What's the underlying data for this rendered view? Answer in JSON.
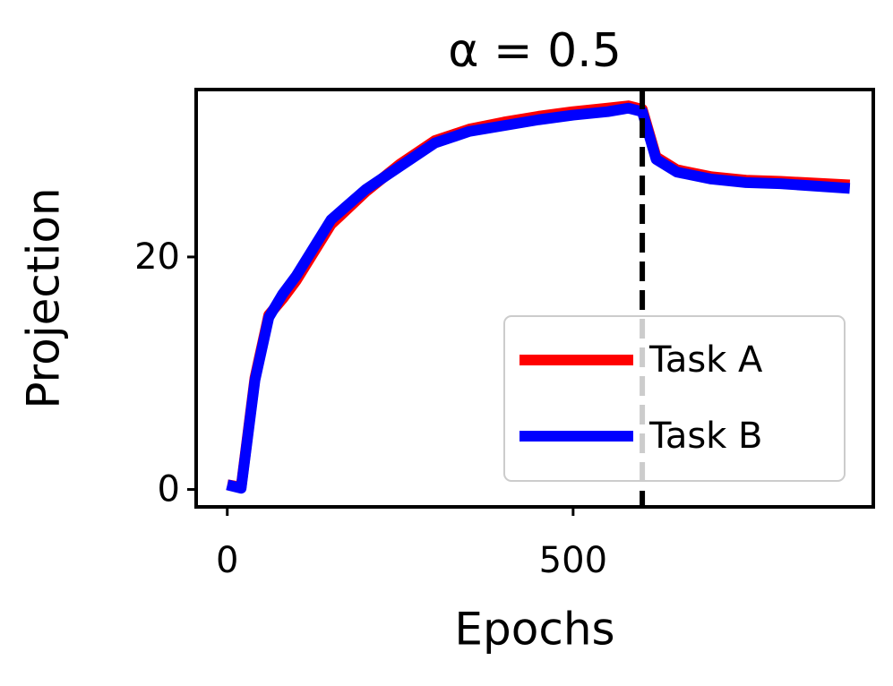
{
  "chart_data": {
    "type": "line",
    "title": "α = 0.5",
    "x_label": "Epochs",
    "y_label": "Projection",
    "x": [
      0,
      20,
      40,
      60,
      80,
      100,
      150,
      200,
      250,
      300,
      350,
      400,
      450,
      500,
      550,
      580,
      600,
      620,
      650,
      700,
      750,
      800,
      900
    ],
    "series": [
      {
        "name": "Task A",
        "color": "#ff0000",
        "values": [
          0.4,
          0.2,
          9.6,
          15.0,
          16.4,
          18.0,
          22.8,
          25.6,
          28.0,
          30.0,
          31.0,
          31.6,
          32.1,
          32.5,
          32.8,
          33.0,
          32.7,
          28.6,
          27.5,
          26.9,
          26.6,
          26.5,
          26.2
        ]
      },
      {
        "name": "Task B",
        "color": "#0000ff",
        "values": [
          0.4,
          0.1,
          9.4,
          14.8,
          16.8,
          18.4,
          23.2,
          25.8,
          27.8,
          29.8,
          30.8,
          31.3,
          31.8,
          32.2,
          32.5,
          32.8,
          32.5,
          28.4,
          27.3,
          26.7,
          26.4,
          26.3,
          25.9
        ]
      }
    ],
    "vline": 600,
    "xlim": [
      -45,
      934
    ],
    "ylim": [
      -1.5,
      34.4
    ],
    "xticks": [
      0,
      500
    ],
    "yticks": [
      0,
      20
    ],
    "legend": "lower right"
  }
}
